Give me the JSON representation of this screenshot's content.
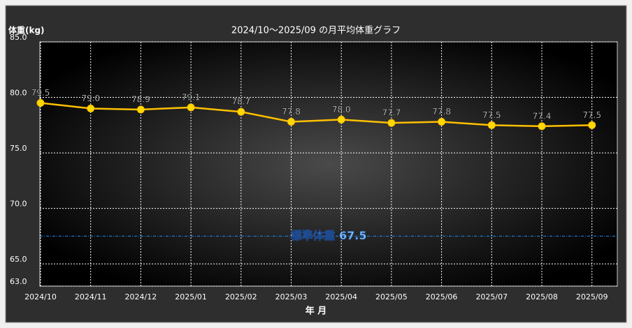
{
  "chart_data": {
    "type": "line",
    "title": "2024/10～2025/09 の月平均体重グラフ",
    "y_label": "体重(kg)",
    "x_label": "年 月",
    "categories": [
      "2024/10",
      "2024/11",
      "2024/12",
      "2025/01",
      "2025/02",
      "2025/03",
      "2025/04",
      "2025/05",
      "2025/06",
      "2025/07",
      "2025/08",
      "2025/09"
    ],
    "series": [
      {
        "color": "#ffc000",
        "values": [
          79.5,
          79.0,
          78.9,
          79.1,
          78.7,
          77.8,
          78.0,
          77.7,
          77.8,
          77.5,
          77.4,
          77.5
        ],
        "value_labels": [
          "79.5",
          "79.0",
          "78.9",
          "79.1",
          "78.7",
          "77.8",
          "78.0",
          "77.7",
          "77.8",
          "77.5",
          "77.4",
          "77.5"
        ]
      }
    ],
    "ylim": [
      63,
      85
    ],
    "yticks": [
      {
        "value": 63,
        "label": "63.0"
      },
      {
        "value": 65,
        "label": "65.0"
      },
      {
        "value": 70,
        "label": "70.0"
      },
      {
        "value": 75,
        "label": "75.0"
      },
      {
        "value": 80,
        "label": "80.0"
      },
      {
        "value": 85,
        "label": "85.0"
      }
    ],
    "grid": true,
    "reference_line": {
      "value": 67.5,
      "label": "標準体重 67.5",
      "color": "#1e90ff"
    }
  }
}
